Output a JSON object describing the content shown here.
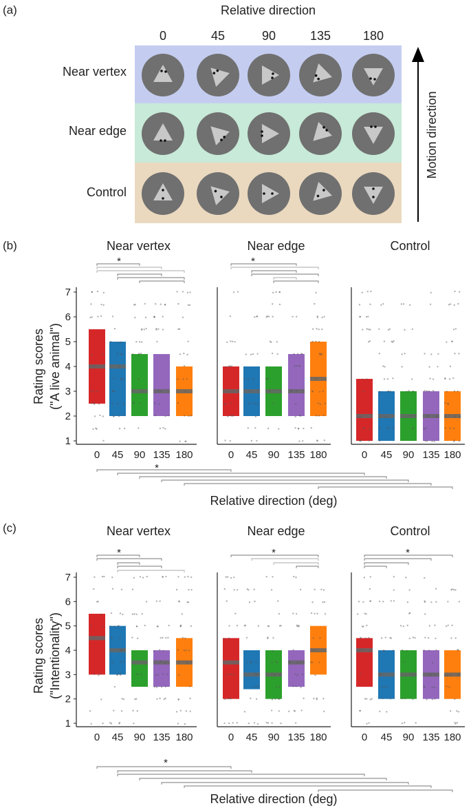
{
  "panel_a": {
    "label": "(a)",
    "title": "Relative direction",
    "columns": [
      "0",
      "45",
      "90",
      "135",
      "180"
    ],
    "rows": [
      {
        "name": "Near vertex",
        "color": "#c4cdf0"
      },
      {
        "name": "Near edge",
        "color": "#c8ead8"
      },
      {
        "name": "Control",
        "color": "#ead9bf"
      }
    ],
    "arrow_label": "Motion direction"
  },
  "panel_b": {
    "label": "(b)",
    "ylabel_line1": "Rating scores",
    "ylabel_line2": "(\"A live animal\")",
    "xlabel": "Relative direction (deg)",
    "star": "*"
  },
  "panel_c": {
    "label": "(c)",
    "ylabel_line1": "Rating scores",
    "ylabel_line2": "(\"Intentionality\")",
    "xlabel": "Relative direction (deg)",
    "star": "*"
  },
  "chart_data": [
    {
      "type": "bar",
      "title": "Near vertex",
      "categories": [
        "0",
        "45",
        "90",
        "135",
        "180"
      ],
      "ylim": [
        1,
        7
      ],
      "yticks": [
        "1",
        "2",
        "3",
        "4",
        "5",
        "6",
        "7"
      ],
      "ylabel": "Rating scores (\"A live animal\")",
      "colors": [
        "#d62728",
        "#1f77b4",
        "#2ca02c",
        "#9467bd",
        "#ff7f0e"
      ],
      "series": [
        {
          "name": "q1",
          "values": [
            2.5,
            2,
            2,
            2,
            2
          ]
        },
        {
          "name": "median",
          "values": [
            4,
            4,
            3,
            3,
            3
          ]
        },
        {
          "name": "q3",
          "values": [
            5.5,
            5,
            4.5,
            4.5,
            4
          ]
        }
      ]
    },
    {
      "type": "bar",
      "title": "Near edge",
      "categories": [
        "0",
        "45",
        "90",
        "135",
        "180"
      ],
      "ylim": [
        1,
        7
      ],
      "colors": [
        "#d62728",
        "#1f77b4",
        "#2ca02c",
        "#9467bd",
        "#ff7f0e"
      ],
      "series": [
        {
          "name": "q1",
          "values": [
            2,
            2,
            2,
            2,
            2
          ]
        },
        {
          "name": "median",
          "values": [
            3,
            3,
            3,
            3,
            3.5
          ]
        },
        {
          "name": "q3",
          "values": [
            4,
            4,
            4,
            4.5,
            5
          ]
        }
      ]
    },
    {
      "type": "bar",
      "title": "Control",
      "categories": [
        "0",
        "45",
        "90",
        "135",
        "180"
      ],
      "ylim": [
        1,
        7
      ],
      "colors": [
        "#d62728",
        "#1f77b4",
        "#2ca02c",
        "#9467bd",
        "#ff7f0e"
      ],
      "series": [
        {
          "name": "q1",
          "values": [
            1,
            1,
            1,
            1,
            1
          ]
        },
        {
          "name": "median",
          "values": [
            2,
            2,
            2,
            2,
            2
          ]
        },
        {
          "name": "q3",
          "values": [
            3.5,
            3,
            3,
            3,
            3
          ]
        }
      ]
    },
    {
      "type": "bar",
      "title": "Near vertex",
      "categories": [
        "0",
        "45",
        "90",
        "135",
        "180"
      ],
      "ylim": [
        1,
        7
      ],
      "yticks": [
        "1",
        "2",
        "3",
        "4",
        "5",
        "6",
        "7"
      ],
      "ylabel": "Rating scores (\"Intentionality\")",
      "colors": [
        "#d62728",
        "#1f77b4",
        "#2ca02c",
        "#9467bd",
        "#ff7f0e"
      ],
      "series": [
        {
          "name": "q1",
          "values": [
            3,
            3,
            2.5,
            2.5,
            2.5
          ]
        },
        {
          "name": "median",
          "values": [
            4.5,
            4,
            3.5,
            3.5,
            3.5
          ]
        },
        {
          "name": "q3",
          "values": [
            5.5,
            5,
            4,
            4,
            4.5
          ]
        }
      ]
    },
    {
      "type": "bar",
      "title": "Near edge",
      "categories": [
        "0",
        "45",
        "90",
        "135",
        "180"
      ],
      "ylim": [
        1,
        7
      ],
      "colors": [
        "#d62728",
        "#1f77b4",
        "#2ca02c",
        "#9467bd",
        "#ff7f0e"
      ],
      "series": [
        {
          "name": "q1",
          "values": [
            2,
            2.4,
            2,
            2.5,
            3
          ]
        },
        {
          "name": "median",
          "values": [
            3.5,
            3,
            3,
            3.5,
            4
          ]
        },
        {
          "name": "q3",
          "values": [
            4.5,
            4,
            4,
            4,
            5
          ]
        }
      ]
    },
    {
      "type": "bar",
      "title": "Control",
      "categories": [
        "0",
        "45",
        "90",
        "135",
        "180"
      ],
      "ylim": [
        1,
        7
      ],
      "colors": [
        "#d62728",
        "#1f77b4",
        "#2ca02c",
        "#9467bd",
        "#ff7f0e"
      ],
      "series": [
        {
          "name": "q1",
          "values": [
            2.5,
            2,
            2,
            2,
            2
          ]
        },
        {
          "name": "median",
          "values": [
            4,
            3,
            3,
            3,
            3
          ]
        },
        {
          "name": "q3",
          "values": [
            4.5,
            4,
            4,
            4,
            4
          ]
        }
      ]
    }
  ]
}
